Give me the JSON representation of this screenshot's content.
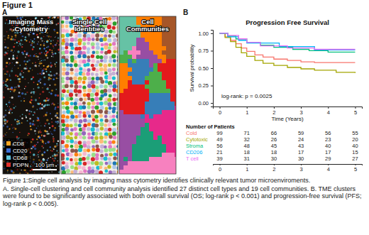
{
  "figure_title": "Figure 1",
  "panel_a": {
    "label": "A",
    "images": [
      {
        "title_lines": [
          "Imaging Mass",
          "Cytometry"
        ]
      },
      {
        "title_lines": [
          "Single Cell",
          "Identities"
        ]
      },
      {
        "title_lines": [
          "Cell",
          "Communities"
        ]
      }
    ],
    "legend": [
      {
        "name": "CD8",
        "color": "#f5a623"
      },
      {
        "name": "CD20",
        "color": "#3b6fd8"
      },
      {
        "name": "CD68",
        "color": "#5fc4d8"
      },
      {
        "name": "PDPN",
        "color": "#e0302a"
      }
    ],
    "scale_bar": "100 μm"
  },
  "panel_b": {
    "label": "B"
  },
  "chart_data": {
    "type": "line",
    "title": "Progression Free Survival",
    "x_label": "Time (Years)",
    "y_label": "Survival probability",
    "annotation": "log-rank: p = 0.0025",
    "risk_table_title": "Number of Patients",
    "line_style": "step",
    "grid": false,
    "xlim": [
      -0.25,
      5.25
    ],
    "xticks": [
      0,
      1,
      2,
      3,
      4,
      5
    ],
    "ylim": [
      -0.05,
      1.05
    ],
    "yticks": [
      {
        "value": 0,
        "label": "0.00"
      },
      0.25,
      {
        "value": 0.5,
        "label": "0.50"
      },
      0.75,
      {
        "value": 1,
        "label": "1.00"
      }
    ],
    "series": [
      {
        "name": "Cold",
        "color": "#F8766D",
        "x": [
          0,
          0.2,
          0.4,
          0.6,
          0.8,
          1.0,
          1.3,
          1.6,
          2.0,
          2.5,
          3.0,
          3.5,
          5.0
        ],
        "values": [
          1,
          0.95,
          0.9,
          0.85,
          0.79,
          0.74,
          0.69,
          0.66,
          0.63,
          0.61,
          0.59,
          0.58,
          0.58
        ],
        "at_risk": [
          99,
          71,
          66,
          59,
          56,
          55
        ]
      },
      {
        "name": "Cytotoxic",
        "color": "#A3A500",
        "x": [
          0,
          0.2,
          0.4,
          0.6,
          0.8,
          1.0,
          1.3,
          1.6,
          2.0,
          2.5,
          3.0,
          3.5,
          4.3,
          5.0
        ],
        "values": [
          1,
          0.94,
          0.88,
          0.8,
          0.72,
          0.67,
          0.61,
          0.57,
          0.54,
          0.51,
          0.49,
          0.47,
          0.44,
          0.43
        ],
        "at_risk": [
          49,
          32,
          26,
          24,
          23,
          20
        ]
      },
      {
        "name": "Stroma",
        "color": "#00BF7D",
        "x": [
          0,
          0.3,
          0.6,
          1.0,
          1.5,
          2.0,
          2.7,
          3.3,
          4.0,
          5.0
        ],
        "values": [
          1,
          0.96,
          0.92,
          0.87,
          0.83,
          0.8,
          0.77,
          0.75,
          0.73,
          0.73
        ],
        "at_risk": [
          56,
          48,
          45,
          43,
          40,
          40
        ]
      },
      {
        "name": "CD206",
        "color": "#00B0F6",
        "x": [
          0,
          0.3,
          0.7,
          1.0,
          2.2,
          3.5,
          5.0
        ],
        "values": [
          1,
          0.95,
          0.9,
          0.86,
          0.81,
          0.76,
          0.76
        ],
        "at_risk": [
          21,
          18,
          18,
          17,
          17,
          15
        ]
      },
      {
        "name": "T cell",
        "color": "#E76BF3",
        "x": [
          0,
          0.3,
          0.7,
          1.0,
          1.5,
          2.5,
          3.5,
          5.0
        ],
        "values": [
          1,
          0.97,
          0.92,
          0.87,
          0.82,
          0.79,
          0.77,
          0.77
        ],
        "at_risk": [
          39,
          31,
          30,
          30,
          29,
          27
        ]
      }
    ]
  },
  "caption": [
    "Figure 1:Single cell analysis by imaging mass cytometry identifies clinically relevant tumor microenviroments.",
    "A. Single-cell clustering and cell community analysis identified 27 distinct cell types and 19 cell communities. B. TME clusters were found to be significantly associated with both overall survival (OS; log-rank p < 0.001) and progression-free survival (PFS; log-rank p < 0.005)."
  ]
}
